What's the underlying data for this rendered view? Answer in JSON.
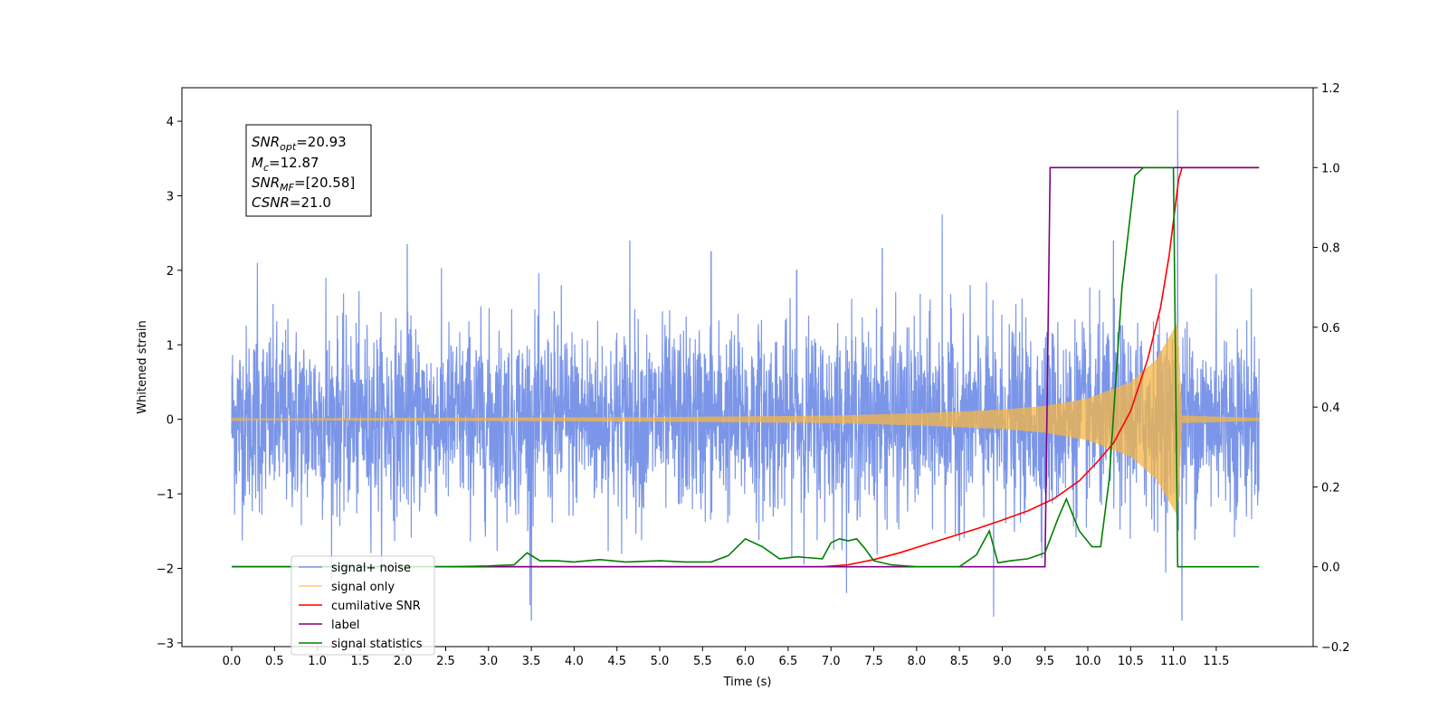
{
  "chart_data": {
    "type": "line",
    "xlabel": "Time (s)",
    "ylabel": "Whitened strain",
    "xlim": [
      -0.6,
      12.5
    ],
    "ylim": [
      -3.05,
      4.45
    ],
    "ylim_right": [
      -0.2,
      1.2
    ],
    "x_ticks": [
      "0.0",
      "0.5",
      "1.0",
      "1.5",
      "2.0",
      "2.5",
      "3.0",
      "3.5",
      "4.0",
      "4.5",
      "5.0",
      "5.5",
      "6.0",
      "6.5",
      "7.0",
      "7.5",
      "8.0",
      "8.5",
      "9.0",
      "9.5",
      "10.0",
      "10.5",
      "11.0",
      "11.5"
    ],
    "y_ticks": [
      "4",
      "3",
      "2",
      "1",
      "0",
      "−1",
      "−2",
      "−3"
    ],
    "y_ticks_right": [
      "1.2",
      "1.0",
      "0.8",
      "0.6",
      "0.4",
      "0.2",
      "0.0",
      "−0.2"
    ],
    "legend_position": "lower-left",
    "annotation": {
      "snr_opt_label": "SNR",
      "snr_opt_sub": "opt",
      "snr_opt_value": "=20.93",
      "mc_label": "M",
      "mc_sub": "c",
      "mc_value": "=12.87",
      "snr_mf_label": "SNR",
      "snr_mf_sub": "MF",
      "snr_mf_value": "=[20.58]",
      "csnr_label": "CSNR",
      "csnr_value": "=21.0"
    },
    "series": [
      {
        "name": "signal+ noise",
        "color": "#7b96e8",
        "axis": "left",
        "noise_std": 0.62,
        "x_range": [
          0.0,
          12.0
        ],
        "spikes": [
          [
            0.3,
            2.1
          ],
          [
            1.1,
            1.9
          ],
          [
            2.05,
            2.35
          ],
          [
            3.5,
            -2.7
          ],
          [
            4.65,
            2.4
          ],
          [
            5.6,
            2.25
          ],
          [
            7.6,
            2.3
          ],
          [
            8.3,
            2.75
          ],
          [
            8.9,
            -2.65
          ],
          [
            10.3,
            2.4
          ],
          [
            11.05,
            4.15
          ],
          [
            11.1,
            -2.7
          ],
          [
            11.5,
            1.95
          ],
          [
            3.85,
            1.8
          ],
          [
            6.6,
            2.0
          ]
        ]
      },
      {
        "name": "signal only",
        "color": "#f5b545",
        "axis": "left",
        "envelope": [
          [
            0.0,
            0.01
          ],
          [
            5.0,
            0.03
          ],
          [
            7.0,
            0.05
          ],
          [
            8.0,
            0.08
          ],
          [
            9.0,
            0.13
          ],
          [
            9.5,
            0.18
          ],
          [
            10.0,
            0.28
          ],
          [
            10.5,
            0.5
          ],
          [
            10.8,
            0.8
          ],
          [
            11.0,
            1.2
          ],
          [
            11.05,
            1.3
          ],
          [
            11.1,
            0.05
          ],
          [
            12.0,
            0.02
          ]
        ]
      },
      {
        "name": "cumilative SNR",
        "color": "#ff0000",
        "axis": "right",
        "x": [
          0.0,
          6.9,
          7.2,
          7.5,
          7.8,
          8.1,
          8.4,
          8.7,
          9.0,
          9.3,
          9.6,
          9.9,
          10.1,
          10.3,
          10.5,
          10.7,
          10.85,
          10.95,
          11.02,
          11.06,
          11.1,
          12.0
        ],
        "y": [
          0.0,
          0.0,
          0.005,
          0.018,
          0.035,
          0.055,
          0.075,
          0.095,
          0.117,
          0.14,
          0.17,
          0.215,
          0.26,
          0.31,
          0.39,
          0.52,
          0.65,
          0.78,
          0.9,
          0.97,
          1.0,
          1.0
        ]
      },
      {
        "name": "label",
        "color": "#800080",
        "axis": "right",
        "x": [
          0.0,
          9.5,
          9.56,
          11.05,
          11.06,
          12.0
        ],
        "y": [
          0.0,
          0.0,
          1.0,
          1.0,
          1.0,
          1.0
        ]
      },
      {
        "name": "signal statistics",
        "color": "#008000",
        "axis": "right",
        "x": [
          0.0,
          1.0,
          2.5,
          3.0,
          3.3,
          3.45,
          3.6,
          3.8,
          4.0,
          4.3,
          4.6,
          5.0,
          5.3,
          5.6,
          5.8,
          6.0,
          6.2,
          6.4,
          6.6,
          6.9,
          7.0,
          7.1,
          7.2,
          7.3,
          7.4,
          7.5,
          7.7,
          8.0,
          8.5,
          8.7,
          8.85,
          8.95,
          9.1,
          9.3,
          9.5,
          9.65,
          9.75,
          9.9,
          10.05,
          10.15,
          10.25,
          10.4,
          10.55,
          10.65,
          11.0,
          11.05,
          11.1,
          12.0
        ],
        "y": [
          0.0,
          0.0,
          0.0,
          0.002,
          0.005,
          0.035,
          0.015,
          0.015,
          0.012,
          0.018,
          0.012,
          0.015,
          0.012,
          0.012,
          0.028,
          0.07,
          0.05,
          0.02,
          0.025,
          0.02,
          0.06,
          0.07,
          0.065,
          0.07,
          0.045,
          0.015,
          0.005,
          0.0,
          0.0,
          0.03,
          0.09,
          0.01,
          0.015,
          0.02,
          0.035,
          0.12,
          0.17,
          0.09,
          0.05,
          0.05,
          0.22,
          0.7,
          0.98,
          1.0,
          1.0,
          0.0,
          0.0,
          0.0
        ]
      }
    ]
  }
}
